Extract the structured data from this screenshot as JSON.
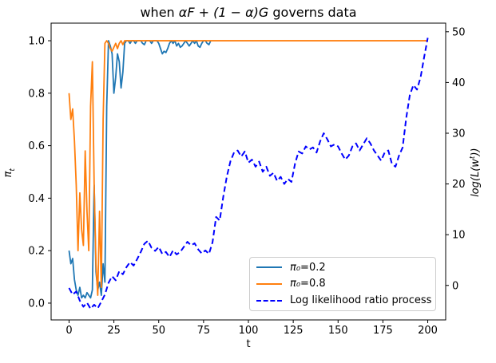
{
  "figure": {
    "title": {
      "prefix": "when ",
      "math": "αF + (1 − α)G",
      "suffix": " governs data"
    },
    "xlabel": "t",
    "ylabel_left_parts": {
      "base": "π",
      "sub": "t"
    },
    "ylabel_right_parts": {
      "prefix": "log(L(w",
      "sup": "t",
      "suffix": "))"
    }
  },
  "chart_data": {
    "type": "line",
    "title": "when αF + (1 − α)G governs data",
    "xlabel": "t",
    "ylabel_left": "πₜ",
    "ylabel_right": "log(L(wᵗ))",
    "grid": false,
    "legend_position": "lower-right-inside",
    "xlim": [
      -10,
      210
    ],
    "ylim_left": [
      -0.064,
      1.067
    ],
    "ylim_right": [
      -6.8,
      51.7
    ],
    "x_ticks": [
      "0",
      "25",
      "50",
      "75",
      "100",
      "125",
      "150",
      "175",
      "200"
    ],
    "x_tick_values": [
      0,
      25,
      50,
      75,
      100,
      125,
      150,
      175,
      200
    ],
    "y_ticks_left": [
      "0.0",
      "0.2",
      "0.4",
      "0.6",
      "0.8",
      "1.0"
    ],
    "y_tick_values_left": [
      0.0,
      0.2,
      0.4,
      0.6,
      0.8,
      1.0
    ],
    "y_ticks_right": [
      "0",
      "10",
      "20",
      "30",
      "40",
      "50"
    ],
    "y_tick_values_right": [
      0,
      10,
      20,
      30,
      40,
      50
    ],
    "series": [
      {
        "name": "π₀=0.2",
        "legend_sym": "π₀",
        "legend_rest": "=0.2",
        "color": "#1f77b4",
        "style": "solid",
        "axis": "left",
        "t_start": 0,
        "t_step": 1,
        "values": [
          0.2,
          0.15,
          0.17,
          0.09,
          0.05,
          0.03,
          0.06,
          0.02,
          0.03,
          0.02,
          0.04,
          0.03,
          0.02,
          0.05,
          0.45,
          0.12,
          0.05,
          0.08,
          0.03,
          0.15,
          0.08,
          0.75,
          1.0,
          0.98,
          0.95,
          0.8,
          0.86,
          0.95,
          0.92,
          0.82,
          0.88,
          0.99,
          1.0,
          1.0,
          0.99,
          1.0,
          1.0,
          0.99,
          1.0,
          1.0,
          1.0,
          0.99,
          0.985,
          1.0,
          1.0,
          1.0,
          0.99,
          1.0,
          1.0,
          1.0,
          0.99,
          0.97,
          0.95,
          0.96,
          0.955,
          0.97,
          0.99,
          1.0,
          0.99,
          1.0,
          0.98,
          0.99,
          0.975,
          0.98,
          0.99,
          1.0,
          0.99,
          0.98,
          0.99,
          1.0,
          0.99,
          1.0,
          0.98,
          0.975,
          0.99,
          1.0,
          1.0,
          0.99,
          0.985,
          1.0
        ]
      },
      {
        "name": "π₀=0.8",
        "legend_sym": "π₀",
        "legend_rest": "=0.8",
        "color": "#ff7f0e",
        "style": "solid",
        "axis": "left",
        "points": [
          [
            0,
            0.8
          ],
          [
            1,
            0.7
          ],
          [
            2,
            0.74
          ],
          [
            3,
            0.62
          ],
          [
            4,
            0.45
          ],
          [
            5,
            0.2
          ],
          [
            6,
            0.42
          ],
          [
            7,
            0.28
          ],
          [
            8,
            0.22
          ],
          [
            9,
            0.58
          ],
          [
            10,
            0.35
          ],
          [
            11,
            0.2
          ],
          [
            12,
            0.75
          ],
          [
            13,
            0.92
          ],
          [
            14,
            0.45
          ],
          [
            15,
            0.15
          ],
          [
            16,
            0.03
          ],
          [
            17,
            0.35
          ],
          [
            18,
            0.06
          ],
          [
            19,
            0.7
          ],
          [
            20,
            0.99
          ],
          [
            21,
            1.0
          ],
          [
            22,
            0.99
          ],
          [
            23,
            0.97
          ],
          [
            24,
            0.96
          ],
          [
            25,
            0.975
          ],
          [
            26,
            0.99
          ],
          [
            27,
            0.97
          ],
          [
            28,
            0.99
          ],
          [
            29,
            1.0
          ],
          [
            30,
            0.985
          ],
          [
            31,
            1.0
          ],
          [
            40,
            1.0
          ],
          [
            60,
            1.0
          ],
          [
            80,
            1.0
          ],
          [
            100,
            1.0
          ],
          [
            120,
            1.0
          ],
          [
            140,
            1.0
          ],
          [
            160,
            1.0
          ],
          [
            180,
            1.0
          ],
          [
            200,
            1.0
          ]
        ]
      },
      {
        "name": "Log likelihood ratio process",
        "legend_sym": "",
        "legend_rest": "Log likelihood ratio process",
        "color": "#0000ff",
        "style": "dashed",
        "axis": "right",
        "points": [
          [
            0,
            -0.5
          ],
          [
            2,
            -1.8
          ],
          [
            4,
            -1.2
          ],
          [
            6,
            -3.0
          ],
          [
            8,
            -4.2
          ],
          [
            10,
            -3.4
          ],
          [
            12,
            -4.6
          ],
          [
            14,
            -3.8
          ],
          [
            16,
            -4.5
          ],
          [
            18,
            -3.2
          ],
          [
            20,
            -1.8
          ],
          [
            22,
            0.5
          ],
          [
            24,
            1.8
          ],
          [
            26,
            1.0
          ],
          [
            28,
            2.8
          ],
          [
            30,
            2.2
          ],
          [
            32,
            3.6
          ],
          [
            34,
            4.6
          ],
          [
            36,
            3.9
          ],
          [
            38,
            5.2
          ],
          [
            40,
            6.6
          ],
          [
            42,
            8.2
          ],
          [
            44,
            8.8
          ],
          [
            46,
            7.4
          ],
          [
            48,
            6.8
          ],
          [
            50,
            7.6
          ],
          [
            52,
            6.2
          ],
          [
            54,
            6.6
          ],
          [
            56,
            5.6
          ],
          [
            58,
            6.9
          ],
          [
            60,
            6.1
          ],
          [
            62,
            6.6
          ],
          [
            64,
            7.6
          ],
          [
            66,
            8.6
          ],
          [
            68,
            7.9
          ],
          [
            70,
            8.3
          ],
          [
            72,
            7.1
          ],
          [
            74,
            6.3
          ],
          [
            76,
            6.9
          ],
          [
            78,
            6.2
          ],
          [
            80,
            8.5
          ],
          [
            82,
            13.5
          ],
          [
            84,
            12.8
          ],
          [
            86,
            17.5
          ],
          [
            88,
            21.5
          ],
          [
            90,
            24.5
          ],
          [
            92,
            26.2
          ],
          [
            94,
            26.6
          ],
          [
            96,
            25.4
          ],
          [
            98,
            26.4
          ],
          [
            100,
            24.2
          ],
          [
            102,
            24.8
          ],
          [
            104,
            23.4
          ],
          [
            106,
            24.4
          ],
          [
            108,
            22.4
          ],
          [
            110,
            23.4
          ],
          [
            112,
            21.6
          ],
          [
            114,
            22.2
          ],
          [
            116,
            20.6
          ],
          [
            118,
            21.4
          ],
          [
            120,
            20.0
          ],
          [
            122,
            21.0
          ],
          [
            124,
            20.4
          ],
          [
            126,
            24.0
          ],
          [
            128,
            26.4
          ],
          [
            130,
            26.0
          ],
          [
            132,
            27.4
          ],
          [
            134,
            26.8
          ],
          [
            136,
            27.2
          ],
          [
            138,
            26.2
          ],
          [
            140,
            28.4
          ],
          [
            142,
            30.0
          ],
          [
            144,
            28.8
          ],
          [
            146,
            27.4
          ],
          [
            148,
            27.8
          ],
          [
            150,
            27.4
          ],
          [
            152,
            26.0
          ],
          [
            154,
            24.8
          ],
          [
            156,
            25.6
          ],
          [
            158,
            27.4
          ],
          [
            160,
            28.0
          ],
          [
            162,
            26.6
          ],
          [
            164,
            27.8
          ],
          [
            166,
            29.0
          ],
          [
            168,
            28.0
          ],
          [
            170,
            26.6
          ],
          [
            172,
            25.6
          ],
          [
            174,
            24.6
          ],
          [
            176,
            26.2
          ],
          [
            178,
            26.6
          ],
          [
            180,
            24.0
          ],
          [
            182,
            23.4
          ],
          [
            184,
            25.6
          ],
          [
            186,
            27.2
          ],
          [
            188,
            33.0
          ],
          [
            190,
            37.5
          ],
          [
            192,
            39.5
          ],
          [
            194,
            38.6
          ],
          [
            196,
            41.0
          ],
          [
            198,
            45.0
          ],
          [
            200,
            48.8
          ]
        ]
      }
    ]
  }
}
